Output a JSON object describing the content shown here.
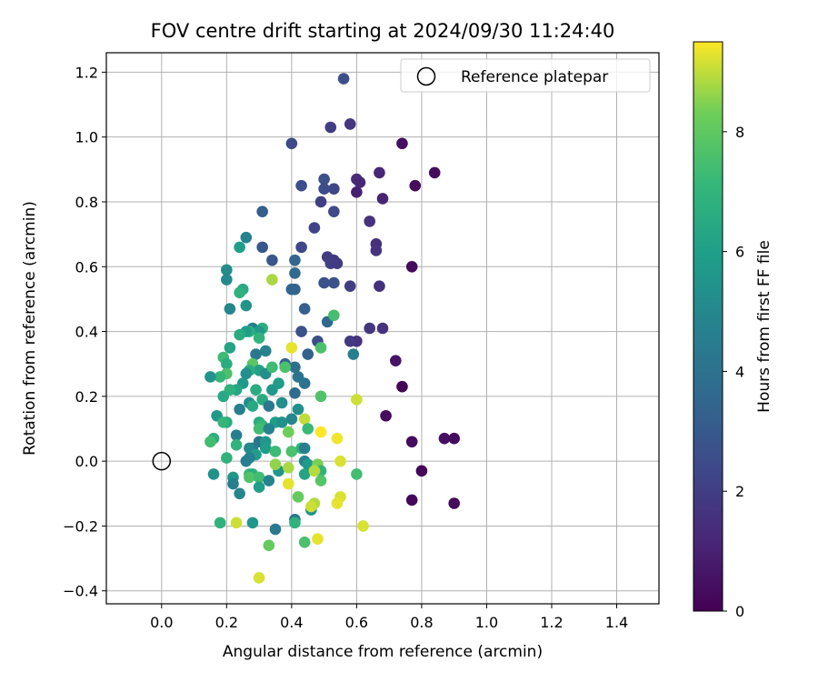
{
  "chart_data": {
    "type": "scatter",
    "title": "FOV centre drift starting at 2024/09/30 11:24:40",
    "xlabel": "Angular distance from reference (arcmin)",
    "ylabel": "Rotation from reference (arcmin)",
    "xlim": [
      -0.17,
      1.53
    ],
    "ylim": [
      -0.44,
      1.26
    ],
    "xticks": [
      0.0,
      0.2,
      0.4,
      0.6,
      0.8,
      1.0,
      1.2,
      1.4
    ],
    "xtick_labels": [
      "0.0",
      "0.2",
      "0.4",
      "0.6",
      "0.8",
      "1.0",
      "1.2",
      "1.4"
    ],
    "yticks": [
      -0.4,
      -0.2,
      0.0,
      0.2,
      0.4,
      0.6,
      0.8,
      1.0,
      1.2
    ],
    "ytick_labels": [
      "−0.4",
      "−0.2",
      "0.0",
      "0.2",
      "0.4",
      "0.6",
      "0.8",
      "1.0",
      "1.2"
    ],
    "grid": true,
    "legend": {
      "location": "upper right",
      "entries": [
        {
          "label": "Reference platepar",
          "marker": "open-circle"
        }
      ]
    },
    "reference_point": {
      "x": 0.0,
      "y": 0.0
    },
    "colorbar": {
      "label": "Hours from first FF file",
      "colormap": "viridis",
      "range": [
        0,
        9.5
      ],
      "ticks": [
        0,
        2,
        4,
        6,
        8
      ],
      "tick_labels": [
        "0",
        "2",
        "4",
        "6",
        "8"
      ]
    },
    "points": [
      {
        "x": 0.74,
        "y": 0.98,
        "c": 0.4
      },
      {
        "x": 0.84,
        "y": 0.89,
        "c": 0.3
      },
      {
        "x": 0.78,
        "y": 0.85,
        "c": 0.3
      },
      {
        "x": 0.77,
        "y": 0.6,
        "c": 0.3
      },
      {
        "x": 0.74,
        "y": 0.23,
        "c": 0.1
      },
      {
        "x": 0.72,
        "y": 0.31,
        "c": 0.6
      },
      {
        "x": 0.69,
        "y": 0.14,
        "c": 0.3
      },
      {
        "x": 0.77,
        "y": 0.06,
        "c": 0.3
      },
      {
        "x": 0.87,
        "y": 0.07,
        "c": 0.4
      },
      {
        "x": 0.9,
        "y": 0.07,
        "c": 0.3
      },
      {
        "x": 0.8,
        "y": -0.03,
        "c": 0.1
      },
      {
        "x": 0.77,
        "y": -0.12,
        "c": 0.2
      },
      {
        "x": 0.9,
        "y": -0.13,
        "c": 0.3
      },
      {
        "x": 0.67,
        "y": 0.89,
        "c": 1.2
      },
      {
        "x": 0.6,
        "y": 0.87,
        "c": 1.4
      },
      {
        "x": 0.61,
        "y": 0.86,
        "c": 1.2
      },
      {
        "x": 0.6,
        "y": 0.83,
        "c": 1.0
      },
      {
        "x": 0.68,
        "y": 0.81,
        "c": 1.1
      },
      {
        "x": 0.64,
        "y": 0.74,
        "c": 1.6
      },
      {
        "x": 0.66,
        "y": 0.67,
        "c": 1.5
      },
      {
        "x": 0.66,
        "y": 0.65,
        "c": 1.6
      },
      {
        "x": 0.67,
        "y": 0.54,
        "c": 1.5
      },
      {
        "x": 0.68,
        "y": 0.41,
        "c": 1.6
      },
      {
        "x": 0.64,
        "y": 0.41,
        "c": 1.7
      },
      {
        "x": 0.6,
        "y": 0.37,
        "c": 1.6
      },
      {
        "x": 0.58,
        "y": 0.37,
        "c": 1.8
      },
      {
        "x": 0.58,
        "y": 1.04,
        "c": 1.7
      },
      {
        "x": 0.56,
        "y": 1.18,
        "c": 2.6
      },
      {
        "x": 0.52,
        "y": 1.03,
        "c": 2.0
      },
      {
        "x": 0.4,
        "y": 0.98,
        "c": 2.4
      },
      {
        "x": 0.5,
        "y": 0.87,
        "c": 2.7
      },
      {
        "x": 0.53,
        "y": 0.84,
        "c": 2.3
      },
      {
        "x": 0.5,
        "y": 0.84,
        "c": 2.5
      },
      {
        "x": 0.43,
        "y": 0.85,
        "c": 2.6
      },
      {
        "x": 0.49,
        "y": 0.8,
        "c": 2.0
      },
      {
        "x": 0.53,
        "y": 0.77,
        "c": 2.4
      },
      {
        "x": 0.47,
        "y": 0.72,
        "c": 2.2
      },
      {
        "x": 0.31,
        "y": 0.77,
        "c": 3.2
      },
      {
        "x": 0.43,
        "y": 0.66,
        "c": 2.3
      },
      {
        "x": 0.31,
        "y": 0.66,
        "c": 2.9
      },
      {
        "x": 0.51,
        "y": 0.63,
        "c": 1.9
      },
      {
        "x": 0.53,
        "y": 0.62,
        "c": 1.8
      },
      {
        "x": 0.52,
        "y": 0.61,
        "c": 2.0
      },
      {
        "x": 0.54,
        "y": 0.61,
        "c": 1.9
      },
      {
        "x": 0.41,
        "y": 0.62,
        "c": 3.5
      },
      {
        "x": 0.34,
        "y": 0.62,
        "c": 2.9
      },
      {
        "x": 0.41,
        "y": 0.58,
        "c": 3.6
      },
      {
        "x": 0.53,
        "y": 0.55,
        "c": 2.7
      },
      {
        "x": 0.5,
        "y": 0.55,
        "c": 2.7
      },
      {
        "x": 0.58,
        "y": 0.54,
        "c": 2.0
      },
      {
        "x": 0.4,
        "y": 0.53,
        "c": 3.5
      },
      {
        "x": 0.41,
        "y": 0.53,
        "c": 3.4
      },
      {
        "x": 0.44,
        "y": 0.47,
        "c": 3.3
      },
      {
        "x": 0.51,
        "y": 0.43,
        "c": 3.6
      },
      {
        "x": 0.43,
        "y": 0.4,
        "c": 2.7
      },
      {
        "x": 0.48,
        "y": 0.37,
        "c": 2.5
      },
      {
        "x": 0.59,
        "y": 0.33,
        "c": 4.6
      },
      {
        "x": 0.45,
        "y": 0.33,
        "c": 3.3
      },
      {
        "x": 0.41,
        "y": 0.29,
        "c": 3.9
      },
      {
        "x": 0.42,
        "y": 0.26,
        "c": 4.1
      },
      {
        "x": 0.44,
        "y": 0.24,
        "c": 4.0
      },
      {
        "x": 0.41,
        "y": 0.21,
        "c": 3.8
      },
      {
        "x": 0.38,
        "y": 0.3,
        "c": 3.5
      },
      {
        "x": 0.26,
        "y": 0.69,
        "c": 4.8
      },
      {
        "x": 0.24,
        "y": 0.66,
        "c": 6.0
      },
      {
        "x": 0.2,
        "y": 0.59,
        "c": 5.2
      },
      {
        "x": 0.2,
        "y": 0.56,
        "c": 5.1
      },
      {
        "x": 0.25,
        "y": 0.53,
        "c": 6.4
      },
      {
        "x": 0.24,
        "y": 0.52,
        "c": 6.8
      },
      {
        "x": 0.26,
        "y": 0.48,
        "c": 5.5
      },
      {
        "x": 0.21,
        "y": 0.47,
        "c": 4.9
      },
      {
        "x": 0.28,
        "y": 0.41,
        "c": 4.6
      },
      {
        "x": 0.31,
        "y": 0.41,
        "c": 6.7
      },
      {
        "x": 0.3,
        "y": 0.4,
        "c": 5.8
      },
      {
        "x": 0.27,
        "y": 0.4,
        "c": 6.8
      },
      {
        "x": 0.26,
        "y": 0.4,
        "c": 6.0
      },
      {
        "x": 0.24,
        "y": 0.39,
        "c": 6.6
      },
      {
        "x": 0.3,
        "y": 0.38,
        "c": 6.9
      },
      {
        "x": 0.21,
        "y": 0.35,
        "c": 6.2
      },
      {
        "x": 0.32,
        "y": 0.34,
        "c": 4.8
      },
      {
        "x": 0.29,
        "y": 0.33,
        "c": 4.3
      },
      {
        "x": 0.19,
        "y": 0.32,
        "c": 7.3
      },
      {
        "x": 0.2,
        "y": 0.3,
        "c": 6.6
      },
      {
        "x": 0.28,
        "y": 0.3,
        "c": 7.9
      },
      {
        "x": 0.3,
        "y": 0.28,
        "c": 6.1
      },
      {
        "x": 0.27,
        "y": 0.28,
        "c": 6.6
      },
      {
        "x": 0.26,
        "y": 0.27,
        "c": 5.3
      },
      {
        "x": 0.32,
        "y": 0.27,
        "c": 5.3
      },
      {
        "x": 0.2,
        "y": 0.27,
        "c": 7.6
      },
      {
        "x": 0.18,
        "y": 0.26,
        "c": 7.1
      },
      {
        "x": 0.15,
        "y": 0.26,
        "c": 5.5
      },
      {
        "x": 0.34,
        "y": 0.29,
        "c": 7.3
      },
      {
        "x": 0.38,
        "y": 0.29,
        "c": 7.6
      },
      {
        "x": 0.36,
        "y": 0.24,
        "c": 5.9
      },
      {
        "x": 0.25,
        "y": 0.24,
        "c": 5.7
      },
      {
        "x": 0.23,
        "y": 0.22,
        "c": 6.3
      },
      {
        "x": 0.21,
        "y": 0.22,
        "c": 6.8
      },
      {
        "x": 0.29,
        "y": 0.22,
        "c": 6.6
      },
      {
        "x": 0.34,
        "y": 0.22,
        "c": 5.6
      },
      {
        "x": 0.19,
        "y": 0.2,
        "c": 6.4
      },
      {
        "x": 0.31,
        "y": 0.19,
        "c": 6.5
      },
      {
        "x": 0.24,
        "y": 0.16,
        "c": 4.6
      },
      {
        "x": 0.27,
        "y": 0.18,
        "c": 5.2
      },
      {
        "x": 0.28,
        "y": 0.17,
        "c": 6.4
      },
      {
        "x": 0.37,
        "y": 0.18,
        "c": 5.3
      },
      {
        "x": 0.33,
        "y": 0.17,
        "c": 4.3
      },
      {
        "x": 0.17,
        "y": 0.14,
        "c": 5.7
      },
      {
        "x": 0.2,
        "y": 0.12,
        "c": 6.5
      },
      {
        "x": 0.19,
        "y": 0.12,
        "c": 7.1
      },
      {
        "x": 0.3,
        "y": 0.12,
        "c": 6.6
      },
      {
        "x": 0.31,
        "y": 0.11,
        "c": 7.1
      },
      {
        "x": 0.3,
        "y": 0.1,
        "c": 7.4
      },
      {
        "x": 0.35,
        "y": 0.12,
        "c": 6.0
      },
      {
        "x": 0.33,
        "y": 0.1,
        "c": 4.8
      },
      {
        "x": 0.4,
        "y": 0.13,
        "c": 4.9
      },
      {
        "x": 0.37,
        "y": 0.12,
        "c": 5.4
      },
      {
        "x": 0.23,
        "y": 0.08,
        "c": 4.6
      },
      {
        "x": 0.16,
        "y": 0.07,
        "c": 6.7
      },
      {
        "x": 0.15,
        "y": 0.06,
        "c": 7.4
      },
      {
        "x": 0.3,
        "y": 0.06,
        "c": 4.1
      },
      {
        "x": 0.32,
        "y": 0.06,
        "c": 5.7
      },
      {
        "x": 0.32,
        "y": 0.04,
        "c": 5.9
      },
      {
        "x": 0.28,
        "y": 0.04,
        "c": 4.4
      },
      {
        "x": 0.27,
        "y": 0.04,
        "c": 5.0
      },
      {
        "x": 0.29,
        "y": 0.02,
        "c": 5.9
      },
      {
        "x": 0.23,
        "y": 0.05,
        "c": 6.9
      },
      {
        "x": 0.35,
        "y": 0.03,
        "c": 7.3
      },
      {
        "x": 0.26,
        "y": 0.0,
        "c": 4.5
      },
      {
        "x": 0.27,
        "y": 0.01,
        "c": 4.7
      },
      {
        "x": 0.2,
        "y": 0.01,
        "c": 6.9
      },
      {
        "x": 0.16,
        "y": -0.04,
        "c": 5.4
      },
      {
        "x": 0.22,
        "y": -0.05,
        "c": 5.6
      },
      {
        "x": 0.22,
        "y": -0.07,
        "c": 4.6
      },
      {
        "x": 0.24,
        "y": -0.1,
        "c": 4.9
      },
      {
        "x": 0.27,
        "y": -0.04,
        "c": 7.1
      },
      {
        "x": 0.28,
        "y": -0.04,
        "c": 6.7
      },
      {
        "x": 0.27,
        "y": -0.05,
        "c": 7.7
      },
      {
        "x": 0.3,
        "y": -0.05,
        "c": 7.4
      },
      {
        "x": 0.3,
        "y": -0.08,
        "c": 6.0
      },
      {
        "x": 0.33,
        "y": -0.06,
        "c": 4.8
      },
      {
        "x": 0.36,
        "y": -0.03,
        "c": 5.6
      },
      {
        "x": 0.18,
        "y": -0.19,
        "c": 6.9
      },
      {
        "x": 0.23,
        "y": -0.19,
        "c": 9.1
      },
      {
        "x": 0.28,
        "y": -0.19,
        "c": 5.6
      },
      {
        "x": 0.35,
        "y": -0.21,
        "c": 4.4
      },
      {
        "x": 0.33,
        "y": -0.26,
        "c": 8.1
      },
      {
        "x": 0.3,
        "y": -0.36,
        "c": 9.2
      },
      {
        "x": 0.35,
        "y": -0.01,
        "c": 8.6
      },
      {
        "x": 0.39,
        "y": -0.02,
        "c": 8.8
      },
      {
        "x": 0.39,
        "y": -0.07,
        "c": 9.3
      },
      {
        "x": 0.39,
        "y": 0.09,
        "c": 8.3
      },
      {
        "x": 0.4,
        "y": 0.03,
        "c": 7.6
      },
      {
        "x": 0.43,
        "y": 0.04,
        "c": 6.9
      },
      {
        "x": 0.44,
        "y": 0.04,
        "c": 4.6
      },
      {
        "x": 0.44,
        "y": 0.0,
        "c": 4.8
      },
      {
        "x": 0.44,
        "y": -0.04,
        "c": 6.2
      },
      {
        "x": 0.45,
        "y": -0.01,
        "c": 5.8
      },
      {
        "x": 0.46,
        "y": -0.15,
        "c": 5.4
      },
      {
        "x": 0.47,
        "y": -0.13,
        "c": 8.9
      },
      {
        "x": 0.46,
        "y": -0.14,
        "c": 9.1
      },
      {
        "x": 0.48,
        "y": -0.01,
        "c": 8.4
      },
      {
        "x": 0.49,
        "y": -0.03,
        "c": 7.0
      },
      {
        "x": 0.47,
        "y": -0.03,
        "c": 8.9
      },
      {
        "x": 0.49,
        "y": -0.06,
        "c": 7.8
      },
      {
        "x": 0.42,
        "y": -0.11,
        "c": 8.1
      },
      {
        "x": 0.41,
        "y": -0.18,
        "c": 4.2
      },
      {
        "x": 0.41,
        "y": -0.19,
        "c": 6.9
      },
      {
        "x": 0.44,
        "y": -0.25,
        "c": 7.6
      },
      {
        "x": 0.48,
        "y": -0.24,
        "c": 9.3
      },
      {
        "x": 0.49,
        "y": 0.09,
        "c": 9.5
      },
      {
        "x": 0.44,
        "y": 0.13,
        "c": 9.0
      },
      {
        "x": 0.45,
        "y": 0.1,
        "c": 7.2
      },
      {
        "x": 0.42,
        "y": 0.16,
        "c": 5.3
      },
      {
        "x": 0.49,
        "y": 0.2,
        "c": 7.7
      },
      {
        "x": 0.4,
        "y": 0.35,
        "c": 9.3
      },
      {
        "x": 0.49,
        "y": 0.35,
        "c": 7.6
      },
      {
        "x": 0.53,
        "y": 0.45,
        "c": 7.5
      },
      {
        "x": 0.34,
        "y": 0.56,
        "c": 8.8
      },
      {
        "x": 0.54,
        "y": 0.07,
        "c": 9.4
      },
      {
        "x": 0.55,
        "y": 0.0,
        "c": 9.2
      },
      {
        "x": 0.55,
        "y": -0.11,
        "c": 9.2
      },
      {
        "x": 0.54,
        "y": -0.13,
        "c": 9.3
      },
      {
        "x": 0.6,
        "y": 0.19,
        "c": 9.1
      },
      {
        "x": 0.6,
        "y": -0.04,
        "c": 7.4
      },
      {
        "x": 0.62,
        "y": -0.2,
        "c": 9.2
      }
    ]
  }
}
